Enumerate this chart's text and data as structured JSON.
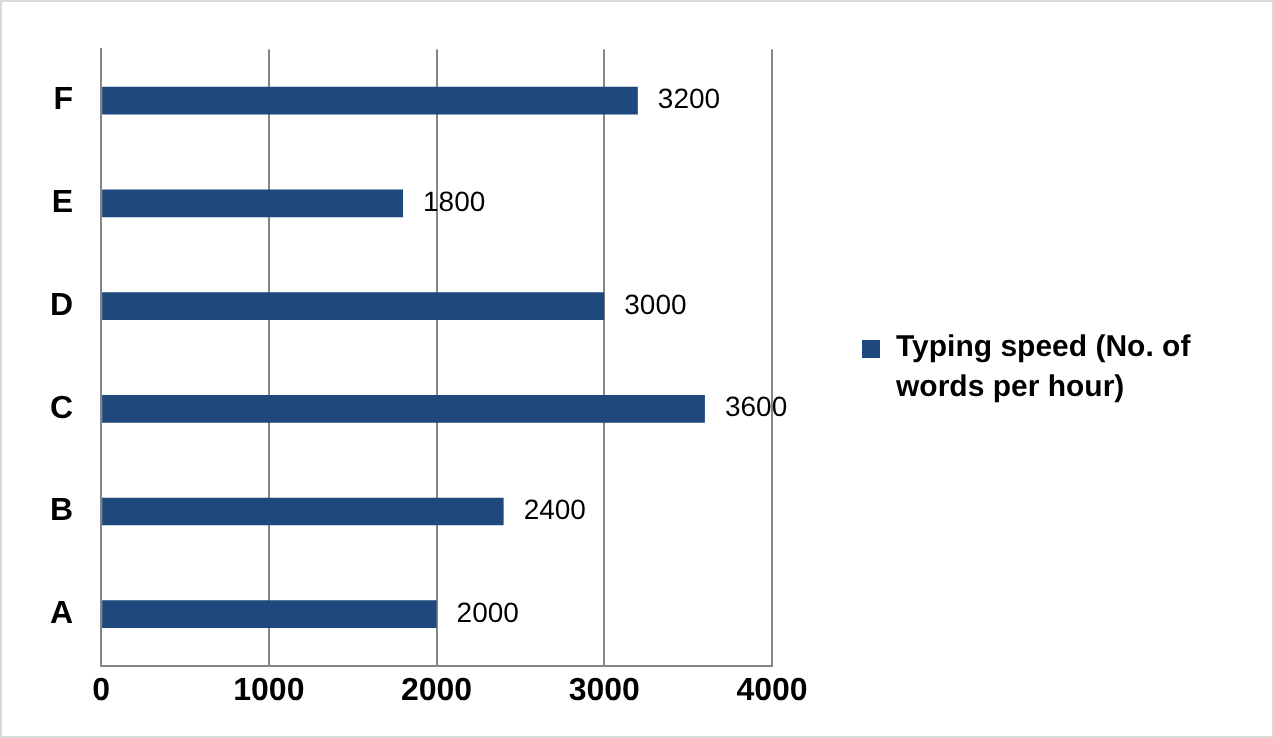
{
  "chart_data": {
    "type": "bar",
    "orientation": "horizontal",
    "categories": [
      "F",
      "E",
      "D",
      "C",
      "B",
      "A"
    ],
    "series": [
      {
        "name": "Typing speed (No. of words per hour)",
        "color": "#1f497d",
        "values": [
          3200,
          1800,
          3000,
          3600,
          2400,
          2000
        ]
      }
    ],
    "xlim": [
      0,
      4000
    ],
    "xticks": [
      0,
      1000,
      2000,
      3000,
      4000
    ],
    "grid": "x",
    "legend": "right",
    "data_labels": true
  }
}
